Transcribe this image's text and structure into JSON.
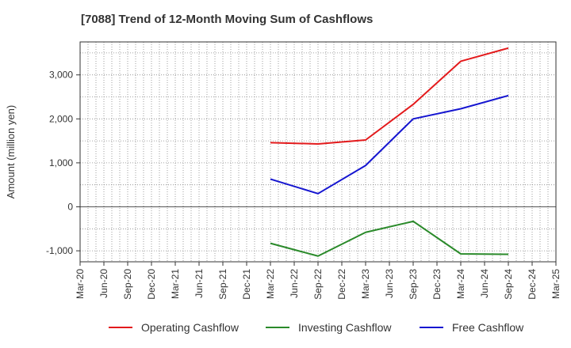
{
  "chart_data": {
    "type": "line",
    "title": "[7088]  Trend of 12-Month Moving Sum of Cashflows",
    "ylabel": "Amount (million yen)",
    "xlabel": "",
    "x": [
      "Mar-20",
      "Jun-20",
      "Sep-20",
      "Dec-20",
      "Mar-21",
      "Jun-21",
      "Sep-21",
      "Dec-21",
      "Mar-22",
      "Jun-22",
      "Sep-22",
      "Dec-22",
      "Mar-23",
      "Jun-23",
      "Sep-23",
      "Dec-23",
      "Mar-24",
      "Jun-24",
      "Sep-24",
      "Dec-24",
      "Mar-25"
    ],
    "ylim": [
      -1250,
      3750
    ],
    "yticks": [
      -1000,
      0,
      1000,
      2000,
      3000
    ],
    "ytick_labels": [
      "-1,000",
      "0",
      "1,000",
      "2,000",
      "3,000"
    ],
    "grid": true,
    "legend": "bottom",
    "series": [
      {
        "name": "Operating Cashflow",
        "color": "#e31a1c",
        "points": [
          [
            "Mar-22",
            1460
          ],
          [
            "Sep-22",
            1430
          ],
          [
            "Mar-23",
            1520
          ],
          [
            "Sep-23",
            2330
          ],
          [
            "Mar-24",
            3310
          ],
          [
            "Sep-24",
            3610
          ]
        ]
      },
      {
        "name": "Investing Cashflow",
        "color": "#2a8a2a",
        "points": [
          [
            "Mar-22",
            -830
          ],
          [
            "Sep-22",
            -1120
          ],
          [
            "Mar-23",
            -580
          ],
          [
            "Sep-23",
            -330
          ],
          [
            "Mar-24",
            -1070
          ],
          [
            "Sep-24",
            -1080
          ]
        ]
      },
      {
        "name": "Free Cashflow",
        "color": "#1515d0",
        "points": [
          [
            "Mar-22",
            630
          ],
          [
            "Sep-22",
            300
          ],
          [
            "Mar-23",
            940
          ],
          [
            "Sep-23",
            2000
          ],
          [
            "Mar-24",
            2230
          ],
          [
            "Sep-24",
            2530
          ]
        ]
      }
    ]
  }
}
